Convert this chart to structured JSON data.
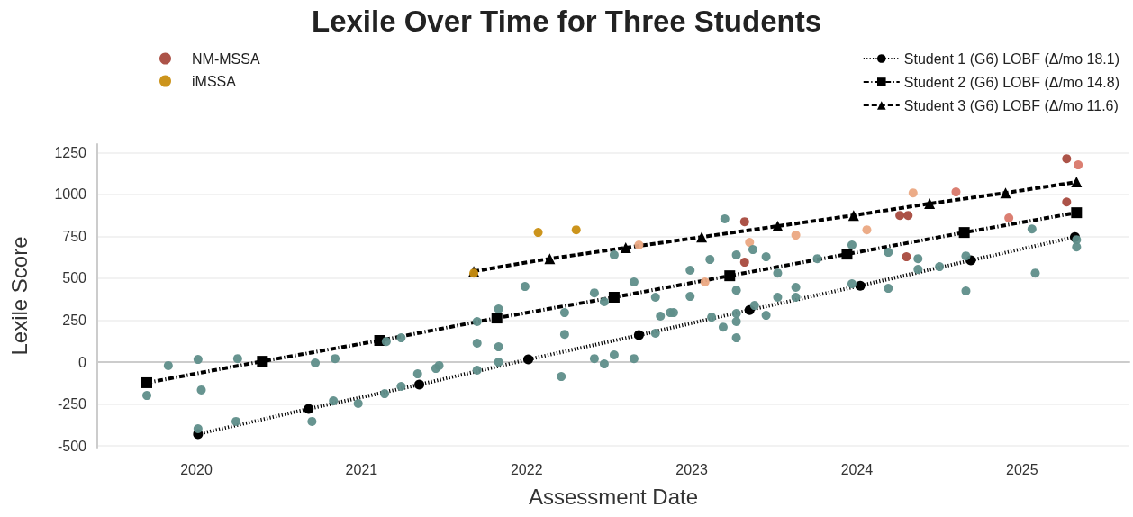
{
  "chart_data": {
    "type": "scatter",
    "title": "Lexile Over Time for Three Students",
    "xlabel": "Assessment Date",
    "ylabel": "Lexile Score",
    "xlim": [
      2019.4,
      2025.65
    ],
    "xticks": [
      2020,
      2021,
      2022,
      2023,
      2024,
      2025
    ],
    "ylim": [
      -510,
      1300
    ],
    "yticks": [
      -500,
      -250,
      0,
      250,
      500,
      750,
      1000,
      1250
    ],
    "grid": "y",
    "legend": "top",
    "marker": "circle",
    "series": [
      {
        "name": "NM-MSSA",
        "color": "#a84a3e",
        "x": [
          2023.32,
          2023.32,
          2024.26,
          2024.31,
          2024.3,
          2025.27,
          2025.27
        ],
        "values": [
          837,
          596,
          875,
          875,
          628,
          1213,
          955
        ]
      },
      {
        "name": "iMSSA",
        "color": "#c98e10",
        "x": [
          2021.68,
          2022.07,
          2022.3
        ],
        "values": [
          531,
          773,
          789
        ]
      },
      {
        "color": "#eba882",
        "x": [
          2022.68,
          2023.08,
          2023.35,
          2023.63,
          2024.06,
          2024.34
        ],
        "values": [
          698,
          478,
          714,
          757,
          789,
          1009
        ]
      },
      {
        "color": "#d9786a",
        "x": [
          2024.6,
          2024.92,
          2025.34
        ],
        "values": [
          1015,
          859,
          1176
        ]
      },
      {
        "color": "#5f8e8a",
        "x": [
          2019.7,
          2019.83,
          2020.01,
          2020.03,
          2020.25,
          2020.72,
          2020.84,
          2021.15,
          2021.24,
          2020.01,
          2020.24,
          2020.7,
          2020.83,
          2020.98,
          2021.14,
          2021.24,
          2021.34,
          2021.45,
          2021.47,
          2021.99,
          2021.83,
          2021.7,
          2021.7,
          2021.83,
          2021.7,
          2021.83,
          2022.23,
          2022.23,
          2022.21,
          2022.41,
          2022.47,
          2022.41,
          2022.47,
          2022.53,
          2022.53,
          2022.65,
          2022.65,
          2022.78,
          2022.81,
          2022.78,
          2022.87,
          2022.89,
          2022.99,
          2022.99,
          2023.11,
          2023.12,
          2023.19,
          2023.2,
          2023.27,
          2023.27,
          2023.27,
          2023.27,
          2023.27,
          2023.37,
          2023.38,
          2023.45,
          2023.45,
          2023.52,
          2023.52,
          2023.63,
          2023.63,
          2023.76,
          2023.97,
          2023.97,
          2024.19,
          2024.19,
          2024.37,
          2024.37,
          2024.5,
          2024.66,
          2024.66,
          2025.06,
          2025.08,
          2025.33,
          2025.33
        ],
        "values": [
          -199,
          -21,
          16,
          -166,
          21,
          -5,
          21,
          123,
          145,
          -397,
          -354,
          -354,
          -231,
          -247,
          -188,
          -145,
          -70,
          -38,
          -21,
          451,
          317,
          242,
          113,
          91,
          -48,
          0,
          295,
          166,
          -86,
          413,
          360,
          21,
          -11,
          43,
          639,
          478,
          21,
          387,
          274,
          172,
          295,
          295,
          548,
          392,
          612,
          268,
          209,
          854,
          639,
          429,
          290,
          242,
          145,
          671,
          338,
          628,
          279,
          531,
          387,
          446,
          387,
          617,
          698,
          467,
          655,
          440,
          617,
          553,
          569,
          633,
          424,
          794,
          531,
          730,
          687
        ]
      },
      {
        "name": "Student 1 (G6) LOBF (Δ/mo 18.1)",
        "type": "line",
        "color": "#000000",
        "marker": "circle",
        "line_style": "dotted",
        "x": [
          2020.01,
          2020.68,
          2021.35,
          2022.01,
          2022.68,
          2023.35,
          2024.02,
          2024.69,
          2025.32
        ],
        "values": [
          -429,
          -279,
          -134,
          16,
          161,
          311,
          456,
          607,
          746
        ]
      },
      {
        "name": "Student 2 (G6) LOBF (Δ/mo 14.8)",
        "type": "line",
        "color": "#000000",
        "marker": "square",
        "line_style": "dashdot",
        "x": [
          2019.7,
          2020.4,
          2021.11,
          2021.82,
          2022.53,
          2023.23,
          2023.94,
          2024.65,
          2025.33
        ],
        "values": [
          -123,
          5,
          129,
          263,
          387,
          515,
          644,
          773,
          891
        ]
      },
      {
        "name": "Student 3 (G6) LOBF (Δ/mo 11.6)",
        "type": "line",
        "color": "#000000",
        "marker": "triangle",
        "line_style": "dashed",
        "x": [
          2021.68,
          2022.14,
          2022.6,
          2023.06,
          2023.52,
          2023.98,
          2024.44,
          2024.9,
          2025.33
        ],
        "values": [
          542,
          617,
          682,
          746,
          811,
          875,
          945,
          1009,
          1074
        ]
      }
    ]
  }
}
